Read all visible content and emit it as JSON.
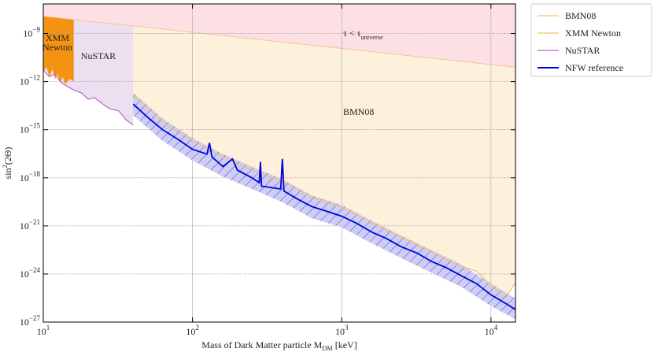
{
  "chart_data": {
    "type": "line",
    "xlabel": [
      "Mass of Dark Matter particle M",
      "DM",
      " [keV]"
    ],
    "ylabel": [
      "sin",
      "2",
      "(2Θ)"
    ],
    "xscale": "log",
    "yscale": "log",
    "grid": true,
    "legend": "outside upper right",
    "xlim": [
      10,
      14600
    ],
    "ylim": [
      1e-27,
      7e-08
    ],
    "xticks": [
      {
        "value": 10,
        "label": "101"
      },
      {
        "value": 100,
        "label": "102"
      },
      {
        "value": 1000,
        "label": "103"
      },
      {
        "value": 10000,
        "label": "104"
      }
    ],
    "yticks": [
      {
        "value": 1e-27,
        "label": "10−27"
      },
      {
        "value": 1e-24,
        "label": "10−24"
      },
      {
        "value": 1e-21,
        "label": "10−21"
      },
      {
        "value": 1e-18,
        "label": "10−18"
      },
      {
        "value": 1e-15,
        "label": "10−15"
      },
      {
        "value": 1e-12,
        "label": "10−12"
      },
      {
        "value": 1e-09,
        "label": "10−9"
      }
    ],
    "lifetime_limit": {
      "label": [
        "τ < τ",
        "universe"
      ],
      "color": "#fde0e4",
      "x": [
        10,
        14600
      ],
      "values": [
        1.2e-08,
        8e-12
      ]
    },
    "annotations": {
      "bmn08": "BMN08",
      "xmm": [
        "XMM",
        "Newton"
      ],
      "nustar": "NuSTAR"
    },
    "series": [
      {
        "name": "BMN08",
        "color": "#f7c066",
        "fill": "#fdf1db",
        "x": [
          40,
          63,
          100,
          160,
          250,
          400,
          630,
          1000,
          1600,
          2500,
          4000,
          6300,
          8000,
          10000,
          12500,
          14600
        ],
        "values": [
          1.5e-13,
          3e-15,
          2e-16,
          2e-17,
          3e-18,
          6e-19,
          6e-20,
          1.5e-20,
          1.5e-21,
          2e-22,
          2.5e-23,
          3e-24,
          1.5e-24,
          2e-25,
          3e-26,
          3e-25
        ]
      },
      {
        "name": "XMM Newton",
        "color": "#f7c066",
        "fill": "#f39213",
        "x": [
          10,
          10.5,
          11,
          11.5,
          12,
          12.5,
          13,
          13.5,
          14,
          15,
          16
        ],
        "values": [
          4e-12,
          8e-12,
          2e-12,
          6e-12,
          1.5e-12,
          3e-12,
          8e-13,
          2e-12,
          7e-13,
          1.5e-12,
          1e-12
        ]
      },
      {
        "name": "NuSTAR",
        "color": "#b86cc0",
        "fill": "#ece0f0",
        "x": [
          10,
          11,
          12,
          13,
          14,
          16,
          18,
          20,
          22,
          25,
          28,
          32,
          36,
          40
        ],
        "values": [
          5e-12,
          2e-12,
          3e-12,
          1e-12,
          6e-13,
          3e-13,
          2e-13,
          8e-14,
          1e-13,
          4e-14,
          2e-14,
          1.5e-14,
          4e-15,
          2e-15
        ]
      },
      {
        "name": "NFW reference",
        "color": "#0000dd",
        "x": [
          40,
          50,
          63,
          80,
          100,
          125,
          130,
          135,
          160,
          185,
          200,
          250,
          280,
          285,
          290,
          390,
          400,
          410,
          500,
          630,
          800,
          1000,
          1250,
          1600,
          2000,
          2500,
          3200,
          4000,
          5000,
          6300,
          8000,
          10000,
          12500,
          14600
        ],
        "values": [
          4e-14,
          6e-15,
          1e-15,
          2.5e-16,
          6e-17,
          3e-17,
          1.5e-16,
          2e-17,
          5e-18,
          1.5e-17,
          3e-18,
          1e-18,
          5e-19,
          1e-17,
          3e-19,
          2e-19,
          1.5e-17,
          1.5e-19,
          5e-20,
          1.6e-20,
          8e-21,
          4e-21,
          1.5e-21,
          4e-22,
          1.6e-22,
          5e-23,
          2e-23,
          6e-24,
          2.5e-24,
          8e-25,
          2.5e-25,
          5e-26,
          1.5e-26,
          6e-27
        ],
        "band": {
          "x": [
            40,
            63,
            100,
            160,
            250,
            400,
            630,
            1000,
            1600,
            2500,
            4000,
            6300,
            10000,
            14600
          ],
          "upper": [
            2e-13,
            5e-15,
            3e-16,
            3e-17,
            5e-18,
            8e-19,
            8e-20,
            2e-20,
            2e-21,
            2.5e-22,
            3e-23,
            4e-24,
            2.5e-25,
            3e-26
          ],
          "lower": [
            8e-15,
            2e-16,
            1.2e-17,
            1.2e-18,
            2e-19,
            3e-20,
            3e-21,
            8e-22,
            8e-23,
            1e-23,
            1.2e-24,
            1.6e-25,
            1e-26,
            1.5e-27
          ]
        }
      }
    ]
  }
}
